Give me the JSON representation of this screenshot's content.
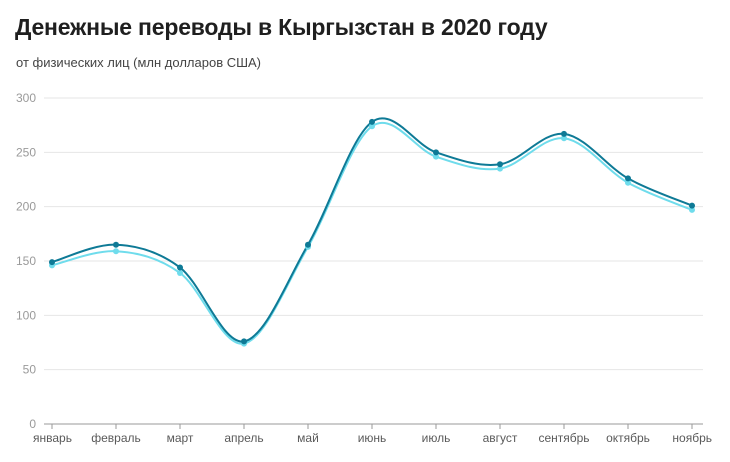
{
  "header": {
    "title": "Денежные переводы в Кыргызстан в 2020 году",
    "subtitle": "от физических лиц (млн долларов США)"
  },
  "colors": {
    "series_dark": "#0e7a96",
    "series_light": "#6fdcec",
    "grid": "#e6e6e6",
    "axis": "#9a9a9a"
  },
  "chart_data": {
    "type": "line",
    "title": "Денежные переводы в Кыргызстан в 2020 году",
    "subtitle": "от физических лиц (млн долларов США)",
    "categories": [
      "январь",
      "февраль",
      "март",
      "апрель",
      "май",
      "июнь",
      "июль",
      "август",
      "сентябрь",
      "октябрь",
      "ноябрь"
    ],
    "series": [
      {
        "values": [
          149,
          165,
          144,
          76,
          165,
          278,
          250,
          239,
          267,
          226,
          201
        ],
        "color": "#0e7a96"
      },
      {
        "values": [
          146,
          159,
          139,
          74,
          163,
          274,
          246,
          235,
          263,
          222,
          197
        ],
        "color": "#6fdcec"
      }
    ],
    "y_ticks": [
      0,
      50,
      100,
      150,
      200,
      250,
      300
    ],
    "ylim": [
      0,
      300
    ],
    "grid": true,
    "xlabel": "",
    "ylabel": ""
  }
}
